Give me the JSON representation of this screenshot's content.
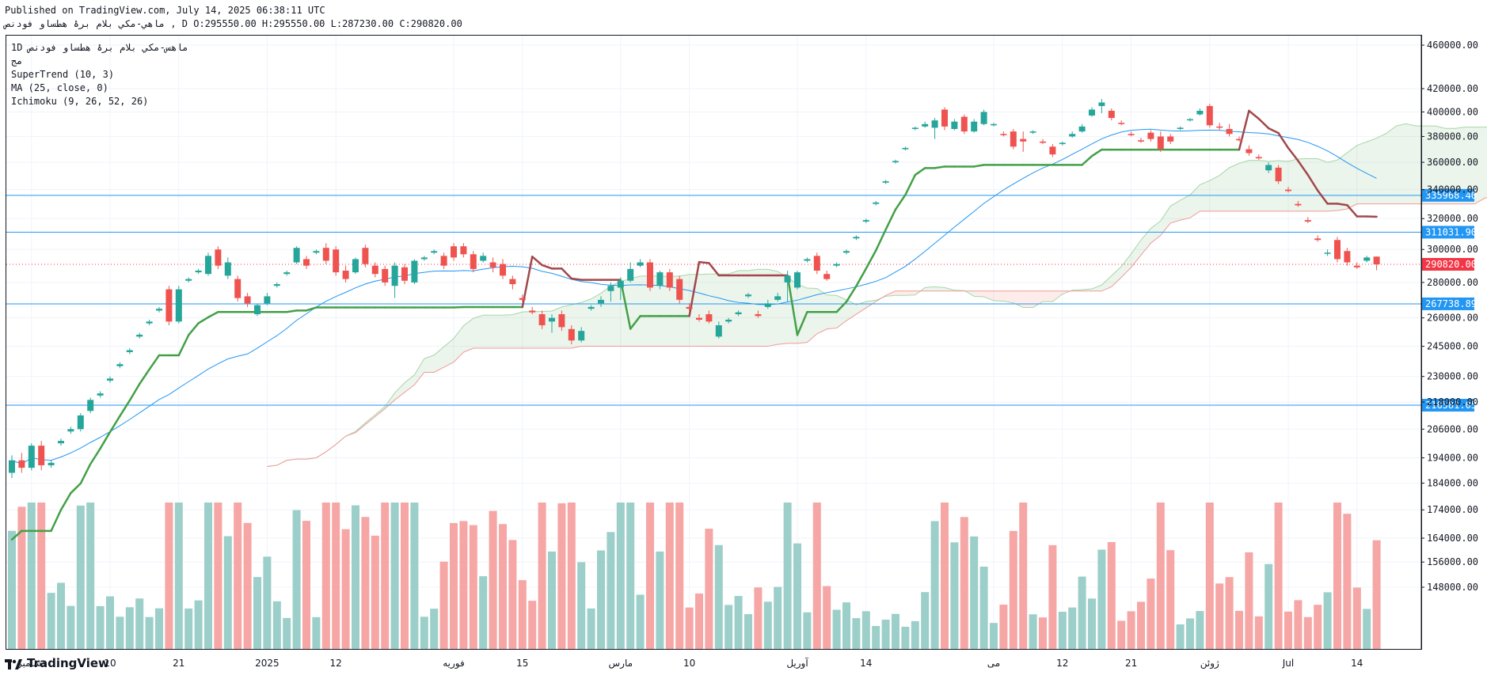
{
  "header": {
    "published": "Published on TradingView.com, July 14, 2025 06:38:11 UTC",
    "ohlc": "ماهي-مكي بلام برۀ هطساو فودنص , D O:295550.00 H:295550.00 L:287230.00 C:290820.00"
  },
  "legend": {
    "symbol": "1D  ماهس-مكي بلام برۀ هطساو فودنص",
    "line2": "مج",
    "supertrend": "SuperTrend (10, 3)",
    "ma": "MA (25, close, 0)",
    "ichimoku": "Ichimoku (9, 26, 52, 26)"
  },
  "footer": {
    "brand": "TradingView"
  },
  "colors": {
    "up": "#26a69a",
    "down": "#ef5350",
    "supertrend_up": "#43a047",
    "supertrend_down": "#a0484a",
    "ma": "#2196f3",
    "hline": "#2196f3",
    "last_price": "#f23645"
  },
  "chart_data": {
    "type": "candlestick",
    "y_scale": "log",
    "y_ticks": [
      148000,
      156000,
      164000,
      174000,
      184000,
      194000,
      206000,
      218000,
      230000,
      245000,
      260000,
      280000,
      300000,
      320000,
      340000,
      360000,
      380000,
      400000,
      420000,
      460000
    ],
    "y_tick_labels": [
      "148000.00",
      "156000.00",
      "164000.00",
      "174000.00",
      "184000.00",
      "194000.00",
      "206000.00",
      "218000.00",
      "230000.00",
      "245000.00",
      "260000.00",
      "280000.00",
      "300000.00",
      "320000.00",
      "340000.00",
      "360000.00",
      "380000.00",
      "400000.00",
      "420000.00",
      "460000.00"
    ],
    "x_labels": [
      {
        "label": "دسامبر",
        "index": 2
      },
      {
        "label": "10",
        "index": 10
      },
      {
        "label": "21",
        "index": 17
      },
      {
        "label": "2025",
        "index": 26
      },
      {
        "label": "12",
        "index": 33
      },
      {
        "label": "فوریه",
        "index": 45
      },
      {
        "label": "15",
        "index": 52
      },
      {
        "label": "مارس",
        "index": 62
      },
      {
        "label": "10",
        "index": 69
      },
      {
        "label": "آوریل",
        "index": 80
      },
      {
        "label": "14",
        "index": 87
      },
      {
        "label": "می",
        "index": 100
      },
      {
        "label": "12",
        "index": 107
      },
      {
        "label": "21",
        "index": 114
      },
      {
        "label": "ژوئن",
        "index": 122
      },
      {
        "label": "Jul",
        "index": 130
      },
      {
        "label": "14",
        "index": 137
      }
    ],
    "horizontal_lines": [
      {
        "value": 335968.4,
        "label": "335968.40"
      },
      {
        "value": 311031.9,
        "label": "311031.90"
      },
      {
        "value": 267738.89,
        "label": "267738.89"
      },
      {
        "value": 216581.05,
        "label": "216581.05"
      }
    ],
    "last_price": {
      "value": 290820.0,
      "label": "290820.00"
    },
    "candles": [
      [
        188000,
        195000,
        186000,
        193000
      ],
      [
        193000,
        196000,
        188000,
        190000
      ],
      [
        190000,
        200000,
        189000,
        199000
      ],
      [
        199000,
        201000,
        189000,
        191000
      ],
      [
        191000,
        193000,
        190000,
        192000
      ],
      [
        200000,
        202000,
        199000,
        201000
      ],
      [
        205000,
        207000,
        204000,
        206000
      ],
      [
        206000,
        213000,
        205000,
        212000
      ],
      [
        214000,
        220000,
        213000,
        219000
      ],
      [
        221000,
        223000,
        220000,
        222000
      ],
      [
        228000,
        230000,
        227000,
        229000
      ],
      [
        235000,
        237000,
        234000,
        236000
      ],
      [
        242000,
        244000,
        241000,
        243000
      ],
      [
        250000,
        252000,
        249000,
        251000
      ],
      [
        257000,
        259000,
        256000,
        258000
      ],
      [
        264000,
        266000,
        263000,
        265000
      ],
      [
        276000,
        278000,
        256000,
        258000
      ],
      [
        258000,
        278000,
        257000,
        276000
      ],
      [
        281000,
        283000,
        280000,
        282000
      ],
      [
        286000,
        288000,
        285000,
        287000
      ],
      [
        285000,
        298000,
        284000,
        296000
      ],
      [
        300000,
        302000,
        288000,
        290000
      ],
      [
        284000,
        295000,
        282000,
        292000
      ],
      [
        282000,
        284000,
        269000,
        271000
      ],
      [
        272000,
        274000,
        266000,
        268000
      ],
      [
        262000,
        268000,
        261000,
        267000
      ],
      [
        268000,
        274000,
        267000,
        272000
      ],
      [
        278000,
        280000,
        277000,
        279000
      ],
      [
        285000,
        287000,
        284000,
        286000
      ],
      [
        292000,
        302000,
        291000,
        301000
      ],
      [
        294000,
        296000,
        288000,
        290000
      ],
      [
        298000,
        300000,
        297000,
        299000
      ],
      [
        301000,
        304000,
        291000,
        293000
      ],
      [
        300000,
        302000,
        284000,
        286000
      ],
      [
        287000,
        290000,
        280000,
        282000
      ],
      [
        286000,
        295000,
        285000,
        294000
      ],
      [
        301000,
        303000,
        289000,
        291000
      ],
      [
        290000,
        292000,
        283000,
        285000
      ],
      [
        288000,
        290000,
        278000,
        280000
      ],
      [
        278000,
        292000,
        271000,
        290000
      ],
      [
        289000,
        291000,
        279000,
        281000
      ],
      [
        280000,
        294000,
        279000,
        293000
      ],
      [
        294000,
        296000,
        293000,
        295000
      ],
      [
        298000,
        300000,
        297000,
        299000
      ],
      [
        296000,
        298000,
        288000,
        290000
      ],
      [
        302000,
        304000,
        293000,
        295000
      ],
      [
        302000,
        304000,
        295000,
        297000
      ],
      [
        297000,
        299000,
        286000,
        288000
      ],
      [
        293000,
        298000,
        292000,
        296000
      ],
      [
        292000,
        295000,
        286000,
        289000
      ],
      [
        291000,
        294000,
        282000,
        284000
      ],
      [
        282000,
        284000,
        276000,
        279000
      ],
      [
        271000,
        273000,
        269000,
        270000
      ],
      [
        264000,
        266000,
        262000,
        263000
      ],
      [
        262000,
        264000,
        254000,
        256000
      ],
      [
        258000,
        262000,
        252000,
        260000
      ],
      [
        262000,
        264000,
        253000,
        255000
      ],
      [
        254000,
        256000,
        246000,
        248000
      ],
      [
        248000,
        255000,
        247000,
        253000
      ],
      [
        265000,
        267000,
        264000,
        266000
      ],
      [
        268000,
        272000,
        266000,
        270000
      ],
      [
        275000,
        280000,
        269000,
        278000
      ],
      [
        277000,
        283000,
        270000,
        281000
      ],
      [
        281000,
        292000,
        280000,
        288000
      ],
      [
        290000,
        294000,
        289000,
        292000
      ],
      [
        292000,
        294000,
        275000,
        277000
      ],
      [
        278000,
        287000,
        276000,
        286000
      ],
      [
        286000,
        288000,
        275000,
        277000
      ],
      [
        282000,
        284000,
        268000,
        270000
      ],
      [
        266000,
        268000,
        264000,
        265000
      ],
      [
        260000,
        262000,
        258000,
        259000
      ],
      [
        262000,
        264000,
        257000,
        258000
      ],
      [
        250000,
        258000,
        249000,
        256000
      ],
      [
        258000,
        260000,
        257000,
        259000
      ],
      [
        262000,
        264000,
        261000,
        263000
      ],
      [
        272000,
        274000,
        271000,
        273000
      ],
      [
        262000,
        264000,
        260000,
        261000
      ],
      [
        266000,
        270000,
        265000,
        268000
      ],
      [
        270000,
        274000,
        269000,
        272000
      ],
      [
        280000,
        287000,
        269000,
        284000
      ],
      [
        277000,
        287000,
        276000,
        286000
      ],
      [
        293000,
        295000,
        292000,
        294000
      ],
      [
        296000,
        298000,
        285000,
        287000
      ],
      [
        285000,
        287000,
        281000,
        282000
      ],
      [
        290000,
        292000,
        289000,
        291000
      ],
      [
        298000,
        300000,
        297000,
        299000
      ],
      [
        307000,
        309000,
        306000,
        308000
      ],
      [
        318000,
        320000,
        317000,
        319000
      ],
      [
        330000,
        332000,
        329000,
        331000
      ],
      [
        345000,
        347000,
        344000,
        346000
      ],
      [
        360000,
        362000,
        359000,
        361000
      ],
      [
        370000,
        372000,
        369000,
        371000
      ],
      [
        386000,
        388000,
        385000,
        387000
      ],
      [
        388000,
        392000,
        387000,
        390000
      ],
      [
        387000,
        395000,
        378000,
        393000
      ],
      [
        402000,
        404000,
        385000,
        388000
      ],
      [
        386000,
        394000,
        385000,
        392000
      ],
      [
        396000,
        398000,
        382000,
        384000
      ],
      [
        384000,
        394000,
        383000,
        392000
      ],
      [
        390000,
        402000,
        389000,
        400000
      ],
      [
        389000,
        391000,
        388000,
        390000
      ],
      [
        382000,
        384000,
        380000,
        381000
      ],
      [
        384000,
        386000,
        370000,
        372000
      ],
      [
        378000,
        384000,
        368000,
        376000
      ],
      [
        383000,
        385000,
        382000,
        384000
      ],
      [
        376000,
        378000,
        374000,
        375000
      ],
      [
        372000,
        374000,
        364000,
        366000
      ],
      [
        374000,
        376000,
        373000,
        375000
      ],
      [
        380000,
        384000,
        379000,
        382000
      ],
      [
        384000,
        390000,
        383000,
        388000
      ],
      [
        397000,
        404000,
        396000,
        402000
      ],
      [
        405000,
        411000,
        399000,
        408000
      ],
      [
        401000,
        403000,
        393000,
        395000
      ],
      [
        391000,
        393000,
        389000,
        390000
      ],
      [
        382000,
        384000,
        380000,
        381000
      ],
      [
        377000,
        379000,
        375000,
        376000
      ],
      [
        383000,
        385000,
        376000,
        378000
      ],
      [
        380000,
        384000,
        368000,
        370000
      ],
      [
        380000,
        382000,
        374000,
        376000
      ],
      [
        386000,
        388000,
        385000,
        387000
      ],
      [
        393000,
        395000,
        392000,
        394000
      ],
      [
        398000,
        403000,
        397000,
        401000
      ],
      [
        405000,
        407000,
        387000,
        389000
      ],
      [
        388000,
        391000,
        385000,
        387000
      ],
      [
        386000,
        390000,
        380000,
        382000
      ],
      [
        378000,
        380000,
        376000,
        377000
      ],
      [
        370000,
        373000,
        365000,
        367000
      ],
      [
        364000,
        366000,
        362000,
        363000
      ],
      [
        354000,
        360000,
        352000,
        358000
      ],
      [
        356000,
        358000,
        344000,
        346000
      ],
      [
        340000,
        342000,
        338000,
        339000
      ],
      [
        330000,
        332000,
        328000,
        329000
      ],
      [
        319000,
        321000,
        317000,
        318000
      ],
      [
        307000,
        309000,
        305000,
        306000
      ],
      [
        298000,
        300000,
        296000,
        298000
      ],
      [
        306000,
        308000,
        292000,
        294000
      ],
      [
        299000,
        301000,
        290000,
        292000
      ],
      [
        290000,
        292000,
        288000,
        289000
      ],
      [
        293000,
        296000,
        292000,
        295000
      ],
      [
        295550,
        295550,
        287230,
        290820
      ]
    ]
  }
}
